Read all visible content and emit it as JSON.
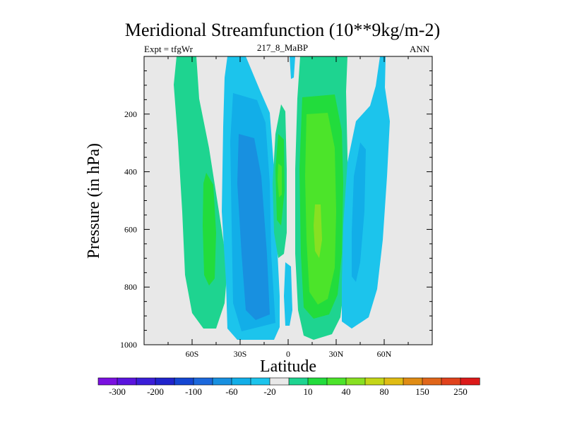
{
  "chart_data": {
    "type": "contour",
    "title": "Meridional Streamfunction (10**9kg/m-2)",
    "left_label": "Expt = tfgWr",
    "subtitle": "217_8_MaBP",
    "right_label": "ANN",
    "xlabel": "Latitude",
    "ylabel": "Pressure (in hPa)",
    "xlim": [
      -90,
      90
    ],
    "ylim": [
      1000,
      0
    ],
    "x_ticks": [
      {
        "value": -60,
        "label": "60S"
      },
      {
        "value": -30,
        "label": "30S"
      },
      {
        "value": 0,
        "label": "0"
      },
      {
        "value": 30,
        "label": "30N"
      },
      {
        "value": 60,
        "label": "60N"
      }
    ],
    "y_ticks": [
      {
        "value": 200,
        "label": "200"
      },
      {
        "value": 400,
        "label": "400"
      },
      {
        "value": 600,
        "label": "600"
      },
      {
        "value": 800,
        "label": "800"
      },
      {
        "value": 1000,
        "label": "1000"
      }
    ],
    "colorbar": {
      "colors": [
        "#7a10e0",
        "#5a14de",
        "#3a1ed8",
        "#2024cc",
        "#1446d2",
        "#1c68dc",
        "#1890e0",
        "#12aee8",
        "#1cc4ec",
        "#e8e8e8",
        "#1ed490",
        "#22dc3c",
        "#4ce42a",
        "#88e022",
        "#c4d618",
        "#e0bc14",
        "#e08c14",
        "#e0661a",
        "#e0421c",
        "#dc1a1a"
      ],
      "labels": [
        "-300",
        "-200",
        "-100",
        "-60",
        "-20",
        "10",
        "40",
        "80",
        "150",
        "250"
      ]
    },
    "cells": [
      {
        "name": "sh-polar-cell",
        "sign": "positive",
        "peak": 20,
        "lat_range": [
          -82,
          -55
        ],
        "p_range": [
          0,
          960
        ]
      },
      {
        "name": "sh-ferrel-cell",
        "sign": "negative",
        "peak": -70,
        "lat_range": [
          -45,
          -8
        ],
        "p_range": [
          50,
          990
        ]
      },
      {
        "name": "sh-hadley-cell",
        "sign": "positive",
        "peak": 60,
        "lat_range": [
          -7,
          3
        ],
        "p_range": [
          150,
          830
        ]
      },
      {
        "name": "nh-hadley-cell",
        "sign": "positive",
        "peak": 75,
        "lat_range": [
          4,
          35
        ],
        "p_range": [
          0,
          990
        ]
      },
      {
        "name": "nh-ferrel-cell",
        "sign": "negative",
        "peak": -25,
        "lat_range": [
          38,
          62
        ],
        "p_range": [
          0,
          940
        ]
      }
    ]
  }
}
